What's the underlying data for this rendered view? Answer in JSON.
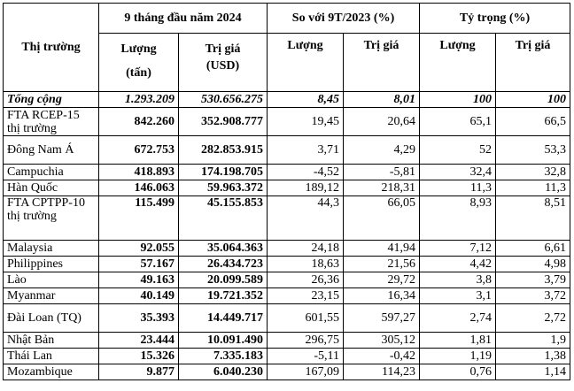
{
  "header": {
    "market": "Thị trường",
    "period": "9 tháng đầu năm 2024",
    "compare": "So với 9T/2023 (%)",
    "share": "Tỷ trọng (%)",
    "volume": "Lượng",
    "unit_tons": "(tấn)",
    "value": "Trị giá",
    "unit_usd": "(USD)"
  },
  "rows": [
    {
      "market": "Tổng cộng",
      "volume": "1.293.209",
      "value": "530.656.275",
      "vol_change": "8,45",
      "val_change": "8,01",
      "vol_share": "100",
      "val_share": "100"
    },
    {
      "market": "FTA RCEP-15 thị trường",
      "volume": "842.260",
      "value": "352.908.777",
      "vol_change": "19,45",
      "val_change": "20,64",
      "vol_share": "65,1",
      "val_share": "66,5"
    },
    {
      "market": "Đông Nam Á",
      "volume": "672.753",
      "value": "282.853.915",
      "vol_change": "3,71",
      "val_change": "4,29",
      "vol_share": "52",
      "val_share": "53,3"
    },
    {
      "market": "Campuchia",
      "volume": "418.893",
      "value": "174.198.705",
      "vol_change": "-4,52",
      "val_change": "-5,81",
      "vol_share": "32,4",
      "val_share": "32,8"
    },
    {
      "market": "Hàn Quốc",
      "volume": "146.063",
      "value": "59.963.372",
      "vol_change": "189,12",
      "val_change": "218,31",
      "vol_share": "11,3",
      "val_share": "11,3"
    },
    {
      "market": "FTA CPTPP-10 thị trường",
      "volume": "115.499",
      "value": "45.155.853",
      "vol_change": "44,3",
      "val_change": "66,05",
      "vol_share": "8,93",
      "val_share": "8,51"
    },
    {
      "market": "Malaysia",
      "volume": "92.055",
      "value": "35.064.363",
      "vol_change": "24,18",
      "val_change": "41,94",
      "vol_share": "7,12",
      "val_share": "6,61"
    },
    {
      "market": "Philippines",
      "volume": "57.167",
      "value": "26.434.723",
      "vol_change": "18,63",
      "val_change": "21,56",
      "vol_share": "4,42",
      "val_share": "4,98"
    },
    {
      "market": "Lào",
      "volume": "49.163",
      "value": "20.099.589",
      "vol_change": "26,36",
      "val_change": "29,72",
      "vol_share": "3,8",
      "val_share": "3,79"
    },
    {
      "market": "Myanmar",
      "volume": "40.149",
      "value": "19.721.352",
      "vol_change": "23,15",
      "val_change": "16,34",
      "vol_share": "3,1",
      "val_share": "3,72"
    },
    {
      "market": "Đài Loan (TQ)",
      "volume": "35.393",
      "value": "14.449.717",
      "vol_change": "601,55",
      "val_change": "597,27",
      "vol_share": "2,74",
      "val_share": "2,72"
    },
    {
      "market": "Nhật Bản",
      "volume": "23.444",
      "value": "10.091.490",
      "vol_change": "296,75",
      "val_change": "305,12",
      "vol_share": "1,81",
      "val_share": "1,9"
    },
    {
      "market": "Thái Lan",
      "volume": "15.326",
      "value": "7.335.183",
      "vol_change": "-5,11",
      "val_change": "-0,42",
      "vol_share": "1,19",
      "val_share": "1,38"
    },
    {
      "market": "Mozambique",
      "volume": "9.877",
      "value": "6.040.230",
      "vol_change": "167,09",
      "val_change": "114,23",
      "vol_share": "0,76",
      "val_share": "1,14"
    }
  ]
}
